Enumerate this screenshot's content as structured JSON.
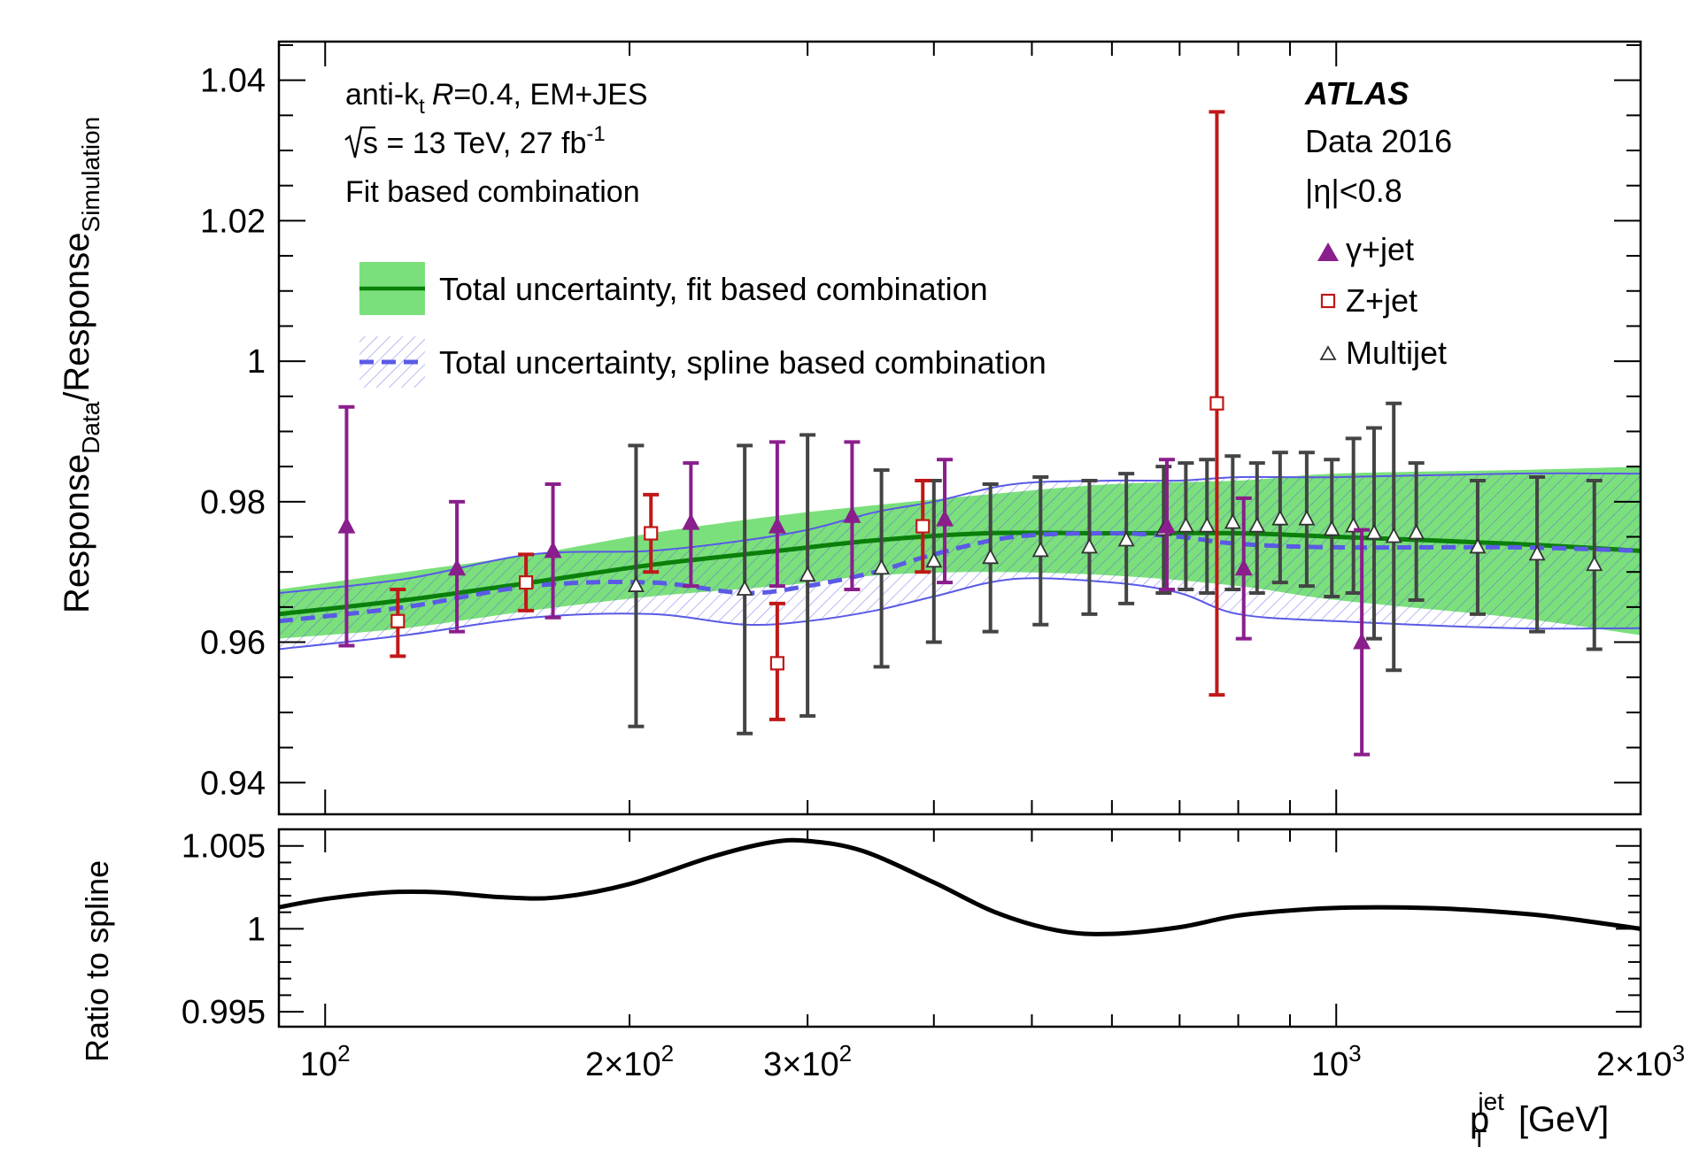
{
  "chart_data": [
    {
      "type": "scatter",
      "panel": "main",
      "ylabel": "Response_Data/Response_Simulation",
      "ylabel_parts": [
        "Response",
        "Data",
        "/Response",
        "Simulation"
      ],
      "xlim": [
        90,
        2000
      ],
      "ylim": [
        0.9355,
        1.0455
      ],
      "x_scale": "log",
      "y_ticks": [
        0.94,
        0.96,
        0.98,
        1.0,
        1.02,
        1.04
      ],
      "y_tick_labels": [
        "0.94",
        "0.96",
        "0.98",
        "1",
        "1.02",
        "1.04"
      ],
      "annotations": {
        "left": {
          "line1": {
            "a": "anti-k",
            "b": "t",
            "c": "R",
            "d": "=0.4, EM+JES"
          },
          "line2": {
            "a": "s = 13 TeV, 27 fb",
            "b": "-1"
          },
          "line3": "Fit based combination"
        },
        "right": {
          "atlas": "ATLAS",
          "data": "Data 2016",
          "eta": "|η|<0.8"
        }
      },
      "legend": {
        "placement": "upper-left",
        "fit_label": "Total uncertainty, fit based combination",
        "spline_label": "Total uncertainty, spline based combination",
        "gamma_label": "γ+jet",
        "z_label": "Z+jet",
        "multijet_label": "Multijet"
      },
      "colors": {
        "gamma": "#8a1e8c",
        "z": "#c01818",
        "multijet": "#444444",
        "fit_band": "#7be07b",
        "fit_line": "#0a7f0a",
        "spline": "#5a5ae6"
      },
      "series": [
        {
          "name": "γ+jet",
          "marker": "filled-triangle",
          "points": [
            {
              "x": 105,
              "y": 0.9765,
              "lo": 0.9595,
              "hi": 0.9935
            },
            {
              "x": 135,
              "y": 0.9705,
              "lo": 0.9615,
              "hi": 0.98
            },
            {
              "x": 168,
              "y": 0.973,
              "lo": 0.9635,
              "hi": 0.9825
            },
            {
              "x": 230,
              "y": 0.977,
              "lo": 0.968,
              "hi": 0.9855
            },
            {
              "x": 280,
              "y": 0.9765,
              "lo": 0.968,
              "hi": 0.9885
            },
            {
              "x": 332,
              "y": 0.978,
              "lo": 0.9675,
              "hi": 0.9885
            },
            {
              "x": 410,
              "y": 0.9775,
              "lo": 0.9685,
              "hi": 0.986
            },
            {
              "x": 680,
              "y": 0.9765,
              "lo": 0.9675,
              "hi": 0.986
            },
            {
              "x": 810,
              "y": 0.9705,
              "lo": 0.9605,
              "hi": 0.9805
            },
            {
              "x": 1060,
              "y": 0.96,
              "lo": 0.944,
              "hi": 0.976
            }
          ]
        },
        {
          "name": "Z+jet",
          "marker": "open-square",
          "points": [
            {
              "x": 118,
              "y": 0.963,
              "lo": 0.958,
              "hi": 0.9675
            },
            {
              "x": 158,
              "y": 0.9685,
              "lo": 0.9645,
              "hi": 0.9725
            },
            {
              "x": 210,
              "y": 0.9755,
              "lo": 0.97,
              "hi": 0.981
            },
            {
              "x": 280,
              "y": 0.957,
              "lo": 0.949,
              "hi": 0.9655
            },
            {
              "x": 390,
              "y": 0.9765,
              "lo": 0.97,
              "hi": 0.983
            },
            {
              "x": 762,
              "y": 0.994,
              "lo": 0.9525,
              "hi": 1.0355
            }
          ]
        },
        {
          "name": "Multijet",
          "marker": "open-triangle",
          "points": [
            {
              "x": 203,
              "y": 0.968,
              "lo": 0.948,
              "hi": 0.988
            },
            {
              "x": 260,
              "y": 0.9675,
              "lo": 0.947,
              "hi": 0.988
            },
            {
              "x": 300,
              "y": 0.9695,
              "lo": 0.9495,
              "hi": 0.9895
            },
            {
              "x": 355,
              "y": 0.9705,
              "lo": 0.9565,
              "hi": 0.9845
            },
            {
              "x": 400,
              "y": 0.9715,
              "lo": 0.96,
              "hi": 0.983
            },
            {
              "x": 455,
              "y": 0.972,
              "lo": 0.9615,
              "hi": 0.9825
            },
            {
              "x": 510,
              "y": 0.973,
              "lo": 0.9625,
              "hi": 0.9835
            },
            {
              "x": 570,
              "y": 0.9735,
              "lo": 0.964,
              "hi": 0.983
            },
            {
              "x": 620,
              "y": 0.9745,
              "lo": 0.9655,
              "hi": 0.984
            },
            {
              "x": 675,
              "y": 0.976,
              "lo": 0.967,
              "hi": 0.985
            },
            {
              "x": 710,
              "y": 0.9765,
              "lo": 0.9675,
              "hi": 0.9855
            },
            {
              "x": 745,
              "y": 0.9765,
              "lo": 0.967,
              "hi": 0.986
            },
            {
              "x": 790,
              "y": 0.977,
              "lo": 0.9675,
              "hi": 0.9865
            },
            {
              "x": 835,
              "y": 0.9765,
              "lo": 0.967,
              "hi": 0.9855
            },
            {
              "x": 880,
              "y": 0.9775,
              "lo": 0.9685,
              "hi": 0.987
            },
            {
              "x": 935,
              "y": 0.9775,
              "lo": 0.968,
              "hi": 0.987
            },
            {
              "x": 990,
              "y": 0.976,
              "lo": 0.9665,
              "hi": 0.986
            },
            {
              "x": 1040,
              "y": 0.9765,
              "lo": 0.967,
              "hi": 0.989
            },
            {
              "x": 1090,
              "y": 0.9755,
              "lo": 0.9605,
              "hi": 0.9905
            },
            {
              "x": 1140,
              "y": 0.975,
              "lo": 0.956,
              "hi": 0.994
            },
            {
              "x": 1200,
              "y": 0.9755,
              "lo": 0.966,
              "hi": 0.9855
            },
            {
              "x": 1380,
              "y": 0.9735,
              "lo": 0.964,
              "hi": 0.983
            },
            {
              "x": 1580,
              "y": 0.9725,
              "lo": 0.9615,
              "hi": 0.9835
            },
            {
              "x": 1800,
              "y": 0.971,
              "lo": 0.959,
              "hi": 0.983
            }
          ]
        },
        {
          "name": "Total uncertainty, fit based combination",
          "kind": "band-line",
          "points": [
            {
              "x": 90,
              "y": 0.964,
              "lo": 0.9605,
              "hi": 0.9675
            },
            {
              "x": 120,
              "y": 0.966,
              "lo": 0.962,
              "hi": 0.97
            },
            {
              "x": 160,
              "y": 0.9685,
              "lo": 0.9645,
              "hi": 0.9725
            },
            {
              "x": 210,
              "y": 0.971,
              "lo": 0.9665,
              "hi": 0.9755
            },
            {
              "x": 280,
              "y": 0.973,
              "lo": 0.968,
              "hi": 0.978
            },
            {
              "x": 350,
              "y": 0.9745,
              "lo": 0.9695,
              "hi": 0.9795
            },
            {
              "x": 450,
              "y": 0.9755,
              "lo": 0.97,
              "hi": 0.981
            },
            {
              "x": 600,
              "y": 0.9755,
              "lo": 0.9695,
              "hi": 0.9825
            },
            {
              "x": 800,
              "y": 0.9755,
              "lo": 0.968,
              "hi": 0.983
            },
            {
              "x": 1000,
              "y": 0.975,
              "lo": 0.966,
              "hi": 0.984
            },
            {
              "x": 1500,
              "y": 0.974,
              "lo": 0.9635,
              "hi": 0.9845
            },
            {
              "x": 2000,
              "y": 0.973,
              "lo": 0.961,
              "hi": 0.985
            }
          ]
        },
        {
          "name": "Total uncertainty, spline based combination",
          "kind": "hatched-band-dashed-line",
          "points": [
            {
              "x": 90,
              "y": 0.963,
              "lo": 0.959,
              "hi": 0.967
            },
            {
              "x": 120,
              "y": 0.965,
              "lo": 0.961,
              "hi": 0.969
            },
            {
              "x": 160,
              "y": 0.968,
              "lo": 0.9635,
              "hi": 0.9725
            },
            {
              "x": 210,
              "y": 0.9685,
              "lo": 0.964,
              "hi": 0.973
            },
            {
              "x": 260,
              "y": 0.967,
              "lo": 0.9625,
              "hi": 0.9745
            },
            {
              "x": 300,
              "y": 0.968,
              "lo": 0.963,
              "hi": 0.976
            },
            {
              "x": 350,
              "y": 0.97,
              "lo": 0.9645,
              "hi": 0.9785
            },
            {
              "x": 400,
              "y": 0.9725,
              "lo": 0.9665,
              "hi": 0.98
            },
            {
              "x": 480,
              "y": 0.975,
              "lo": 0.969,
              "hi": 0.9825
            },
            {
              "x": 600,
              "y": 0.9755,
              "lo": 0.9685,
              "hi": 0.983
            },
            {
              "x": 700,
              "y": 0.975,
              "lo": 0.967,
              "hi": 0.983
            },
            {
              "x": 800,
              "y": 0.974,
              "lo": 0.964,
              "hi": 0.9835
            },
            {
              "x": 1000,
              "y": 0.9735,
              "lo": 0.963,
              "hi": 0.9835
            },
            {
              "x": 1500,
              "y": 0.9735,
              "lo": 0.962,
              "hi": 0.984
            },
            {
              "x": 2000,
              "y": 0.973,
              "lo": 0.962,
              "hi": 0.984
            }
          ]
        }
      ]
    },
    {
      "type": "line",
      "panel": "ratio",
      "ylabel": "Ratio to spline",
      "xlabel_main": "p",
      "xlabel_sub": "T",
      "xlabel_sup": "jet",
      "xlabel_unit": "[GeV]",
      "xlim": [
        90,
        2000
      ],
      "ylim": [
        0.9941,
        1.006
      ],
      "x_scale": "log",
      "y_ticks": [
        0.995,
        1.0,
        1.005
      ],
      "y_tick_labels": [
        "0.995",
        "1",
        "1.005"
      ],
      "x_tick_labels": [
        {
          "x": 100,
          "base": "10",
          "exp": "2",
          "pre": ""
        },
        {
          "x": 200,
          "base": "10",
          "exp": "2",
          "pre": "2×"
        },
        {
          "x": 300,
          "base": "10",
          "exp": "2",
          "pre": "3×"
        },
        {
          "x": 1000,
          "base": "10",
          "exp": "3",
          "pre": ""
        },
        {
          "x": 2000,
          "base": "10",
          "exp": "3",
          "pre": "2×"
        }
      ],
      "points": [
        {
          "x": 90,
          "y": 1.0013
        },
        {
          "x": 100,
          "y": 1.0018
        },
        {
          "x": 115,
          "y": 1.0022
        },
        {
          "x": 130,
          "y": 1.0022
        },
        {
          "x": 150,
          "y": 1.0019
        },
        {
          "x": 170,
          "y": 1.0019
        },
        {
          "x": 200,
          "y": 1.0027
        },
        {
          "x": 240,
          "y": 1.0043
        },
        {
          "x": 275,
          "y": 1.0052
        },
        {
          "x": 300,
          "y": 1.0053
        },
        {
          "x": 340,
          "y": 1.0047
        },
        {
          "x": 400,
          "y": 1.0028
        },
        {
          "x": 460,
          "y": 1.001
        },
        {
          "x": 530,
          "y": 0.9999
        },
        {
          "x": 600,
          "y": 0.9997
        },
        {
          "x": 700,
          "y": 1.0001
        },
        {
          "x": 800,
          "y": 1.0008
        },
        {
          "x": 950,
          "y": 1.0012
        },
        {
          "x": 1100,
          "y": 1.0013
        },
        {
          "x": 1300,
          "y": 1.0012
        },
        {
          "x": 1600,
          "y": 1.0008
        },
        {
          "x": 2000,
          "y": 1.0
        }
      ]
    }
  ]
}
